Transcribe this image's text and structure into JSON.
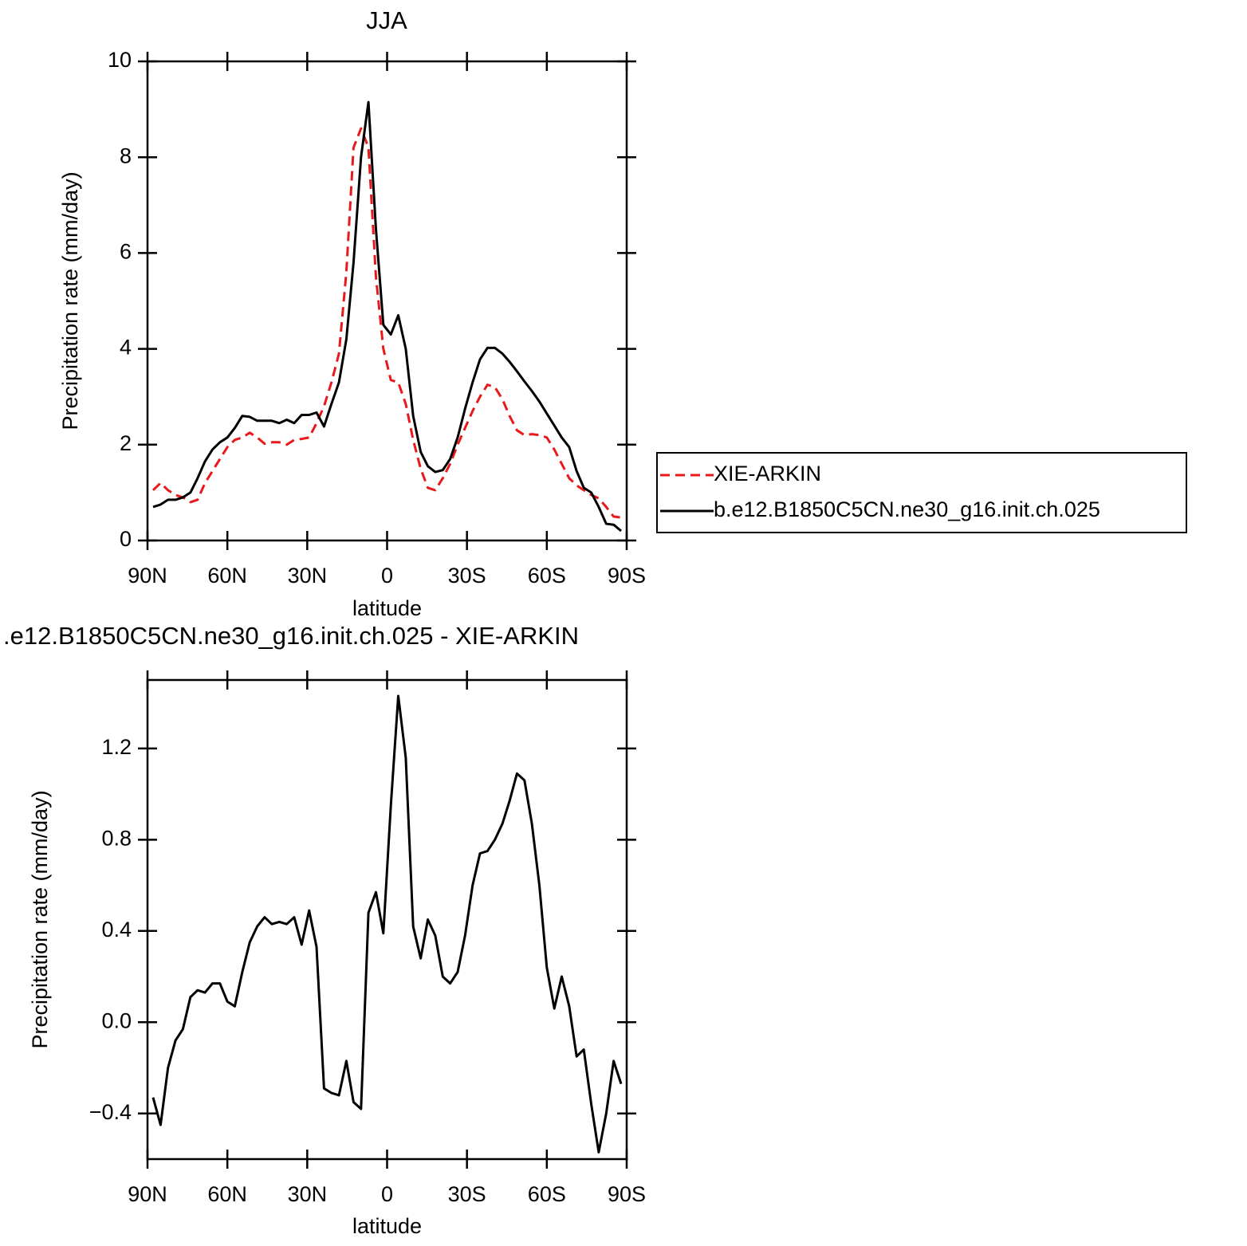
{
  "chart_data": [
    {
      "type": "line",
      "title": "JJA",
      "xlabel": "latitude",
      "ylabel": "Precipitation rate (mm/day)",
      "x": [
        87.9,
        85.1,
        82.3,
        79.5,
        76.7,
        73.9,
        71.2,
        68.4,
        65.6,
        62.8,
        60.0,
        57.2,
        54.4,
        51.6,
        48.8,
        46.0,
        43.3,
        40.5,
        37.7,
        34.9,
        32.1,
        29.3,
        26.5,
        23.7,
        20.9,
        18.1,
        15.3,
        12.6,
        9.8,
        7.0,
        4.2,
        1.4,
        -1.4,
        -4.2,
        -7.0,
        -9.8,
        -12.6,
        -15.3,
        -18.1,
        -20.9,
        -23.7,
        -26.5,
        -29.3,
        -32.1,
        -34.9,
        -37.7,
        -40.5,
        -43.3,
        -46.0,
        -48.8,
        -51.6,
        -54.4,
        -57.2,
        -60.0,
        -62.8,
        -65.6,
        -68.4,
        -71.2,
        -73.9,
        -76.7,
        -79.5,
        -82.3,
        -85.1,
        -87.9
      ],
      "series": [
        {
          "name": "XIE-ARKIN",
          "color": "#e8191b",
          "dashed": true,
          "values": [
            1.05,
            1.2,
            1.05,
            0.95,
            0.9,
            0.8,
            0.85,
            1.2,
            1.45,
            1.7,
            1.95,
            2.1,
            2.15,
            2.25,
            2.15,
            2.02,
            2.05,
            2.05,
            2.0,
            2.1,
            2.12,
            2.15,
            2.45,
            2.8,
            3.3,
            3.9,
            5.6,
            8.2,
            8.6,
            8.2,
            5.5,
            4.0,
            3.35,
            3.3,
            2.85,
            2.1,
            1.5,
            1.1,
            1.05,
            1.3,
            1.6,
            2.0,
            2.35,
            2.7,
            3.0,
            3.25,
            3.2,
            2.95,
            2.6,
            2.3,
            2.2,
            2.22,
            2.2,
            2.15,
            1.9,
            1.6,
            1.3,
            1.15,
            1.05,
            0.95,
            0.88,
            0.7,
            0.5,
            0.48
          ]
        },
        {
          "name": "b.e12.B1850C5CN.ne30_g16.init.ch.025",
          "color": "#000000",
          "dashed": false,
          "values": [
            0.7,
            0.75,
            0.85,
            0.85,
            0.9,
            1.0,
            1.3,
            1.65,
            1.9,
            2.05,
            2.15,
            2.35,
            2.6,
            2.58,
            2.5,
            2.5,
            2.5,
            2.45,
            2.52,
            2.45,
            2.62,
            2.62,
            2.67,
            2.38,
            2.85,
            3.3,
            4.2,
            5.8,
            8.0,
            9.15,
            6.5,
            4.5,
            4.3,
            4.7,
            4.0,
            2.6,
            1.85,
            1.55,
            1.43,
            1.47,
            1.7,
            2.15,
            2.75,
            3.3,
            3.78,
            4.02,
            4.02,
            3.9,
            3.73,
            3.53,
            3.32,
            3.12,
            2.9,
            2.65,
            2.4,
            2.15,
            1.95,
            1.45,
            1.1,
            1.0,
            0.7,
            0.35,
            0.33,
            0.2
          ]
        }
      ],
      "xlim": [
        90,
        -90
      ],
      "xticks": [
        {
          "value": 90,
          "label": "90N"
        },
        {
          "value": 60,
          "label": "60N"
        },
        {
          "value": 30,
          "label": "30N"
        },
        0,
        {
          "value": -30,
          "label": "30S"
        },
        {
          "value": -60,
          "label": "60S"
        },
        {
          "value": -90,
          "label": "90S"
        }
      ],
      "ylim": [
        0,
        10
      ],
      "yticks": [
        0,
        2,
        4,
        6,
        8,
        10
      ],
      "legend": "right"
    },
    {
      "type": "line",
      "title": ".e12.B1850C5CN.ne30_g16.init.ch.025 - XIE-ARKIN",
      "xlabel": "latitude",
      "ylabel": "Precipitation rate (mm/day)",
      "x": [
        87.9,
        85.1,
        82.3,
        79.5,
        76.7,
        73.9,
        71.2,
        68.4,
        65.6,
        62.8,
        60.0,
        57.2,
        54.4,
        51.6,
        48.8,
        46.0,
        43.3,
        40.5,
        37.7,
        34.9,
        32.1,
        29.3,
        26.5,
        23.7,
        20.9,
        18.1,
        15.3,
        12.6,
        9.8,
        7.0,
        4.2,
        1.4,
        -1.4,
        -4.2,
        -7.0,
        -9.8,
        -12.6,
        -15.3,
        -18.1,
        -20.9,
        -23.7,
        -26.5,
        -29.3,
        -32.1,
        -34.9,
        -37.7,
        -40.5,
        -43.3,
        -46.0,
        -48.8,
        -51.6,
        -54.4,
        -57.2,
        -60.0,
        -62.8,
        -65.6,
        -68.4,
        -71.2,
        -73.9,
        -76.7,
        -79.5,
        -82.3,
        -85.1,
        -87.9
      ],
      "values": [
        -0.33,
        -0.45,
        -0.2,
        -0.08,
        -0.03,
        0.11,
        0.14,
        0.13,
        0.17,
        0.17,
        0.09,
        0.07,
        0.22,
        0.35,
        0.42,
        0.46,
        0.43,
        0.44,
        0.43,
        0.46,
        0.34,
        0.49,
        0.33,
        -0.29,
        -0.31,
        -0.32,
        -0.17,
        -0.35,
        -0.38,
        0.48,
        0.57,
        0.39,
        0.95,
        1.43,
        1.16,
        0.42,
        0.28,
        0.45,
        0.38,
        0.2,
        0.17,
        0.22,
        0.38,
        0.6,
        0.74,
        0.75,
        0.8,
        0.87,
        0.97,
        1.09,
        1.06,
        0.87,
        0.6,
        0.24,
        0.06,
        0.2,
        0.07,
        -0.15,
        -0.12,
        -0.36,
        -0.57,
        -0.4,
        -0.17,
        -0.27
      ],
      "color": "#000000",
      "xlim": [
        90,
        -90
      ],
      "xticks": [
        {
          "value": 90,
          "label": "90N"
        },
        {
          "value": 60,
          "label": "60N"
        },
        {
          "value": 30,
          "label": "30N"
        },
        0,
        {
          "value": -30,
          "label": "30S"
        },
        {
          "value": -60,
          "label": "60S"
        },
        {
          "value": -90,
          "label": "90S"
        }
      ],
      "ylim": [
        -0.6,
        1.5
      ],
      "yticks": [
        {
          "value": -0.4,
          "label": "−0.4"
        },
        {
          "value": 0,
          "label": "0.0"
        },
        0.4,
        0.8,
        1.2
      ]
    }
  ]
}
